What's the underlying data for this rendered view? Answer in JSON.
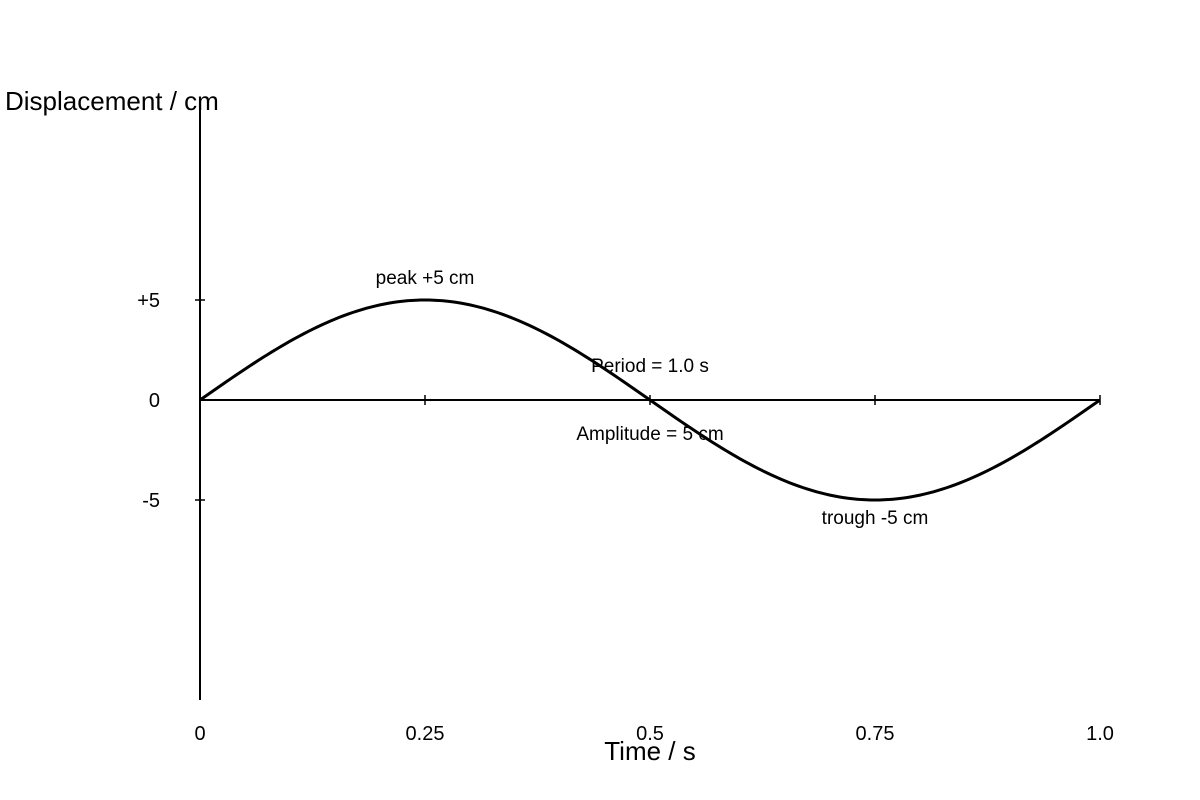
{
  "chart_data": {
    "type": "line",
    "title": "",
    "xlabel": "Time / s",
    "ylabel": "Displacement / cm",
    "xlim": [
      0,
      1.0
    ],
    "ylim": [
      -15,
      15
    ],
    "grid": false,
    "x_ticks": [
      {
        "value": 0,
        "label": "0"
      },
      {
        "value": 0.25,
        "label": "0.25"
      },
      {
        "value": 0.5,
        "label": "0.5"
      },
      {
        "value": 0.75,
        "label": "0.75"
      },
      {
        "value": 1.0,
        "label": "1.0"
      }
    ],
    "y_ticks": [
      {
        "value": 5,
        "label": "+5"
      },
      {
        "value": 0,
        "label": "0"
      },
      {
        "value": -5,
        "label": "-5"
      }
    ],
    "series": [
      {
        "amplitude": 5,
        "period": 1.0,
        "x": [
          0,
          0.05,
          0.1,
          0.15,
          0.2,
          0.25,
          0.3,
          0.35,
          0.4,
          0.45,
          0.5,
          0.55,
          0.6,
          0.65,
          0.7,
          0.75,
          0.8,
          0.85,
          0.9,
          0.95,
          1.0
        ],
        "values": [
          0,
          1.55,
          2.94,
          4.05,
          4.76,
          5,
          4.76,
          4.05,
          2.94,
          1.55,
          0,
          -1.55,
          -2.94,
          -4.05,
          -4.76,
          -5,
          -4.76,
          -4.05,
          -2.94,
          -1.55,
          0
        ],
        "color": "#000000"
      }
    ],
    "annotations": [
      {
        "text": "peak +5 cm",
        "x": 0.25,
        "y": 6.1
      },
      {
        "text": "Period = 1.0 s",
        "x": 0.5,
        "y": 1.7
      },
      {
        "text": "Amplitude = 5 cm",
        "x": 0.5,
        "y": -1.7
      },
      {
        "text": "trough -5 cm",
        "x": 0.75,
        "y": -5.9
      }
    ]
  }
}
